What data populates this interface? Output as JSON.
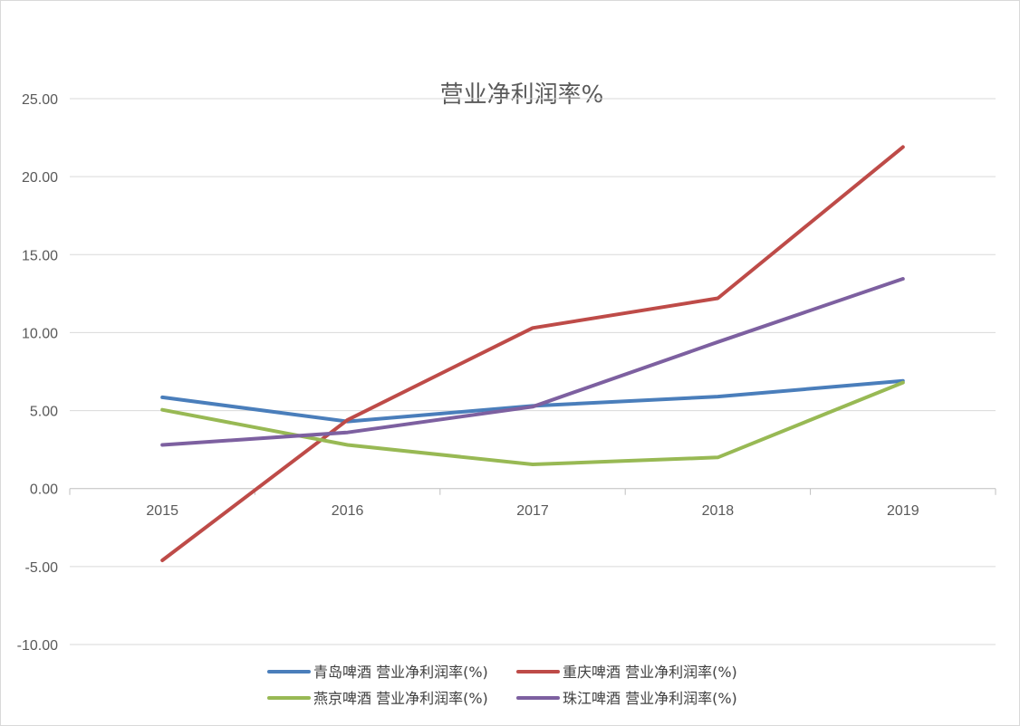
{
  "chart_data": {
    "type": "line",
    "title": "营业净利润率%",
    "xlabel": "",
    "ylabel": "",
    "categories": [
      "2015",
      "2016",
      "2017",
      "2018",
      "2019"
    ],
    "ylim": [
      -10,
      25
    ],
    "y_ticks": [
      "25.00",
      "20.00",
      "15.00",
      "10.00",
      "5.00",
      "0.00",
      "-5.00",
      "-10.00"
    ],
    "y_tick_values": [
      25,
      20,
      15,
      10,
      5,
      0,
      -5,
      -10
    ],
    "grid": true,
    "legend_position": "bottom",
    "series": [
      {
        "name": "青岛啤酒 营业净利润率(%)",
        "color": "#4a7ebb",
        "values": [
          5.85,
          4.3,
          5.3,
          5.9,
          6.9
        ]
      },
      {
        "name": "重庆啤酒 营业净利润率(%)",
        "color": "#be4b48",
        "values": [
          -4.6,
          4.4,
          10.3,
          12.2,
          21.9
        ]
      },
      {
        "name": "燕京啤酒 营业净利润率(%)",
        "color": "#98b954",
        "values": [
          5.05,
          2.8,
          1.55,
          2.0,
          6.8
        ]
      },
      {
        "name": "珠江啤酒 营业净利润率(%)",
        "color": "#7d60a0",
        "values": [
          2.8,
          3.6,
          5.25,
          9.4,
          13.45
        ]
      }
    ]
  }
}
